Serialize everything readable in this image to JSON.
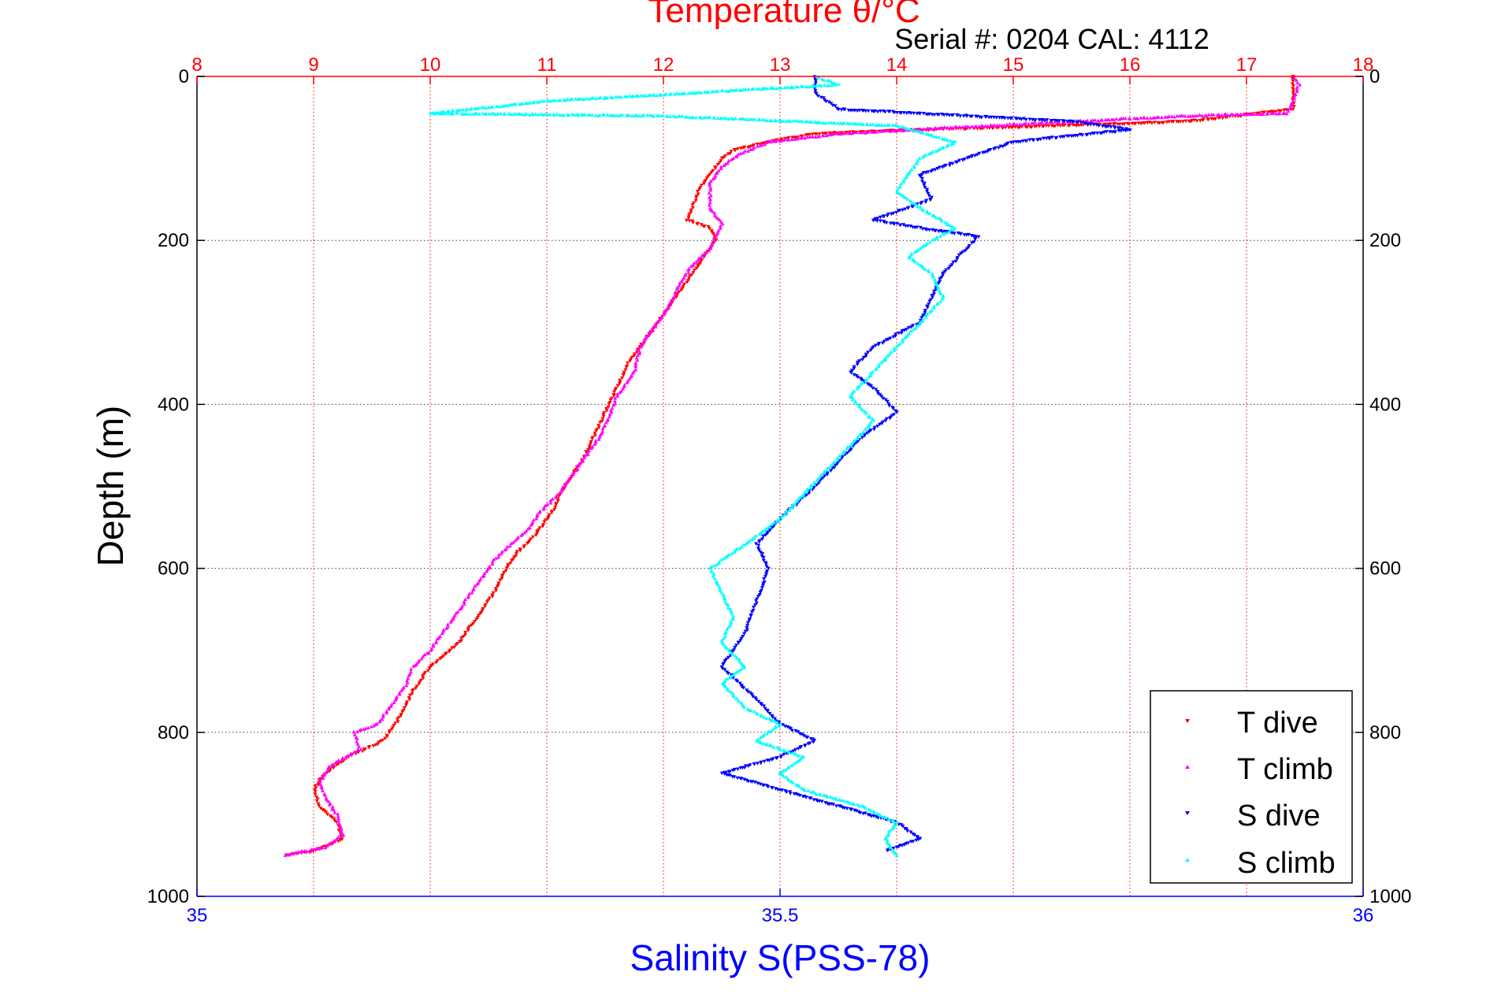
{
  "chart_data": {
    "type": "scatter",
    "title": "Temperature θ/°C",
    "subtitle": "Serial #: 0204  CAL: 4112",
    "ylabel": "Depth (m)",
    "xlabel": "Salinity S(PSS-78)",
    "ylim": [
      0,
      1000
    ],
    "y_reversed": true,
    "temperature_axis": {
      "label": "Temperature θ/°C",
      "range": [
        8,
        18
      ],
      "ticks": [
        "8",
        "9",
        "10",
        "11",
        "12",
        "13",
        "14",
        "15",
        "16",
        "17",
        "18"
      ],
      "color": "#ff0000",
      "position": "top"
    },
    "salinity_axis": {
      "label": "Salinity S(PSS-78)",
      "range": [
        35,
        36
      ],
      "ticks": [
        "35",
        "35.5",
        "36"
      ],
      "color": "#0000ff",
      "position": "bottom"
    },
    "depth_ticks": [
      "0",
      "200",
      "400",
      "600",
      "800",
      "1000"
    ],
    "grid": true,
    "legend": {
      "position": "bottom-right",
      "entries": [
        "T dive",
        "T climb",
        "S dive",
        "S climb"
      ]
    },
    "series": [
      {
        "name": "T dive",
        "axis": "temperature",
        "color": "#ff0000",
        "marker": "triangle-down",
        "points": [
          [
            17.4,
            0
          ],
          [
            17.4,
            20
          ],
          [
            17.4,
            40
          ],
          [
            16.5,
            55
          ],
          [
            15.0,
            62
          ],
          [
            14.0,
            66
          ],
          [
            13.3,
            70
          ],
          [
            12.9,
            80
          ],
          [
            12.6,
            90
          ],
          [
            12.5,
            100
          ],
          [
            12.45,
            110
          ],
          [
            12.4,
            120
          ],
          [
            12.3,
            140
          ],
          [
            12.25,
            160
          ],
          [
            12.2,
            175
          ],
          [
            12.4,
            185
          ],
          [
            12.45,
            200
          ],
          [
            12.3,
            230
          ],
          [
            12.15,
            260
          ],
          [
            12.0,
            290
          ],
          [
            11.85,
            320
          ],
          [
            11.7,
            350
          ],
          [
            11.6,
            380
          ],
          [
            11.5,
            410
          ],
          [
            11.4,
            440
          ],
          [
            11.3,
            470
          ],
          [
            11.15,
            500
          ],
          [
            11.05,
            530
          ],
          [
            10.9,
            560
          ],
          [
            10.75,
            580
          ],
          [
            10.65,
            600
          ],
          [
            10.55,
            630
          ],
          [
            10.4,
            660
          ],
          [
            10.25,
            690
          ],
          [
            10.0,
            720
          ],
          [
            9.85,
            750
          ],
          [
            9.75,
            780
          ],
          [
            9.6,
            810
          ],
          [
            9.3,
            830
          ],
          [
            9.1,
            850
          ],
          [
            9.0,
            870
          ],
          [
            9.05,
            890
          ],
          [
            9.2,
            910
          ],
          [
            9.25,
            930
          ],
          [
            9.0,
            945
          ],
          [
            8.75,
            950
          ]
        ]
      },
      {
        "name": "T climb",
        "axis": "temperature",
        "color": "#ff00ff",
        "marker": "triangle-up",
        "points": [
          [
            8.75,
            950
          ],
          [
            9.1,
            940
          ],
          [
            9.25,
            925
          ],
          [
            9.2,
            900
          ],
          [
            9.1,
            880
          ],
          [
            9.05,
            860
          ],
          [
            9.15,
            840
          ],
          [
            9.4,
            820
          ],
          [
            9.35,
            800
          ],
          [
            9.55,
            790
          ],
          [
            9.65,
            770
          ],
          [
            9.8,
            740
          ],
          [
            9.85,
            720
          ],
          [
            10.0,
            700
          ],
          [
            10.1,
            680
          ],
          [
            10.25,
            650
          ],
          [
            10.4,
            620
          ],
          [
            10.55,
            590
          ],
          [
            10.7,
            570
          ],
          [
            10.85,
            550
          ],
          [
            10.95,
            530
          ],
          [
            11.1,
            510
          ],
          [
            11.2,
            490
          ],
          [
            11.3,
            470
          ],
          [
            11.45,
            440
          ],
          [
            11.55,
            410
          ],
          [
            11.6,
            390
          ],
          [
            11.75,
            360
          ],
          [
            11.8,
            330
          ],
          [
            11.95,
            300
          ],
          [
            12.05,
            280
          ],
          [
            12.15,
            250
          ],
          [
            12.25,
            230
          ],
          [
            12.4,
            210
          ],
          [
            12.5,
            180
          ],
          [
            12.4,
            160
          ],
          [
            12.4,
            130
          ],
          [
            12.5,
            110
          ],
          [
            12.65,
            95
          ],
          [
            12.9,
            80
          ],
          [
            13.5,
            70
          ],
          [
            14.5,
            62
          ],
          [
            15.5,
            55
          ],
          [
            16.5,
            48
          ],
          [
            17.35,
            45
          ],
          [
            17.4,
            30
          ],
          [
            17.45,
            10
          ],
          [
            17.4,
            0
          ]
        ]
      },
      {
        "name": "S dive",
        "axis": "salinity",
        "color": "#0000ff",
        "marker": "triangle-down",
        "points": [
          [
            35.53,
            0
          ],
          [
            35.53,
            20
          ],
          [
            35.55,
            40
          ],
          [
            35.75,
            55
          ],
          [
            35.8,
            65
          ],
          [
            35.7,
            80
          ],
          [
            35.66,
            100
          ],
          [
            35.62,
            120
          ],
          [
            35.63,
            150
          ],
          [
            35.58,
            175
          ],
          [
            35.62,
            185
          ],
          [
            35.67,
            195
          ],
          [
            35.66,
            210
          ],
          [
            35.64,
            240
          ],
          [
            35.63,
            270
          ],
          [
            35.62,
            300
          ],
          [
            35.58,
            330
          ],
          [
            35.56,
            360
          ],
          [
            35.58,
            380
          ],
          [
            35.6,
            410
          ],
          [
            35.57,
            440
          ],
          [
            35.55,
            470
          ],
          [
            35.53,
            500
          ],
          [
            35.5,
            540
          ],
          [
            35.48,
            570
          ],
          [
            35.49,
            600
          ],
          [
            35.48,
            640
          ],
          [
            35.47,
            680
          ],
          [
            35.45,
            720
          ],
          [
            35.48,
            760
          ],
          [
            35.5,
            790
          ],
          [
            35.53,
            810
          ],
          [
            35.5,
            830
          ],
          [
            35.45,
            850
          ],
          [
            35.5,
            870
          ],
          [
            35.55,
            890
          ],
          [
            35.6,
            910
          ],
          [
            35.62,
            930
          ],
          [
            35.59,
            945
          ]
        ]
      },
      {
        "name": "S climb",
        "axis": "salinity",
        "color": "#00ffff",
        "marker": "triangle-up",
        "points": [
          [
            35.6,
            950
          ],
          [
            35.59,
            930
          ],
          [
            35.6,
            910
          ],
          [
            35.57,
            890
          ],
          [
            35.52,
            870
          ],
          [
            35.5,
            850
          ],
          [
            35.52,
            830
          ],
          [
            35.48,
            810
          ],
          [
            35.5,
            790
          ],
          [
            35.47,
            770
          ],
          [
            35.45,
            740
          ],
          [
            35.47,
            720
          ],
          [
            35.45,
            690
          ],
          [
            35.46,
            660
          ],
          [
            35.45,
            630
          ],
          [
            35.44,
            600
          ],
          [
            35.46,
            580
          ],
          [
            35.48,
            560
          ],
          [
            35.5,
            540
          ],
          [
            35.52,
            510
          ],
          [
            35.54,
            480
          ],
          [
            35.56,
            450
          ],
          [
            35.58,
            420
          ],
          [
            35.56,
            390
          ],
          [
            35.58,
            360
          ],
          [
            35.6,
            330
          ],
          [
            35.62,
            300
          ],
          [
            35.64,
            270
          ],
          [
            35.63,
            240
          ],
          [
            35.61,
            220
          ],
          [
            35.63,
            200
          ],
          [
            35.65,
            185
          ],
          [
            35.62,
            160
          ],
          [
            35.6,
            140
          ],
          [
            35.61,
            120
          ],
          [
            35.62,
            100
          ],
          [
            35.65,
            80
          ],
          [
            35.6,
            60
          ],
          [
            35.4,
            48
          ],
          [
            35.2,
            45
          ],
          [
            35.3,
            30
          ],
          [
            35.55,
            10
          ],
          [
            35.53,
            0
          ]
        ]
      }
    ]
  }
}
